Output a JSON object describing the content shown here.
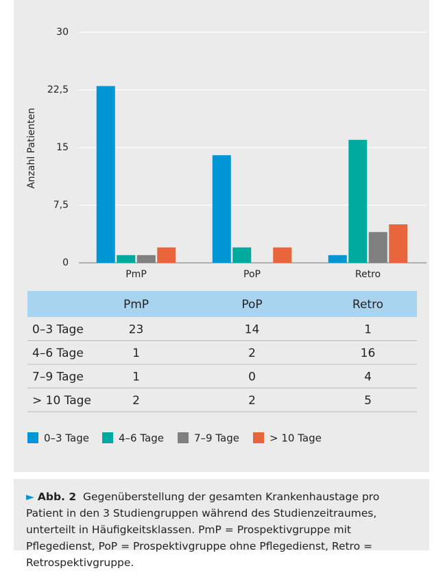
{
  "chart_data": {
    "type": "bar",
    "y_label": "Anzahl Patienten",
    "categories": [
      "PmP",
      "PoP",
      "Retro"
    ],
    "series": [
      {
        "name": "0–3 Tage",
        "color": "#0096d6",
        "values": [
          23,
          14,
          1
        ]
      },
      {
        "name": "4–6 Tage",
        "color": "#00a99d",
        "values": [
          1,
          2,
          16
        ]
      },
      {
        "name": "7–9 Tage",
        "color": "#808080",
        "values": [
          1,
          0,
          4
        ]
      },
      {
        "name": "> 10 Tage",
        "color": "#e8653c",
        "values": [
          2,
          2,
          5
        ]
      }
    ],
    "ylim": [
      0,
      30
    ],
    "yticks": [
      0,
      {
        "value": 7.5,
        "label": "7,5"
      },
      15,
      {
        "value": 22.5,
        "label": "22,5"
      },
      30
    ],
    "grid": true,
    "legend": "bottom"
  },
  "caption": {
    "label": "Abb. 2",
    "text": "Gegenüberstellung der gesamten Krankenhaustage pro Patient in den 3 Studiengruppen während des Studienzeitraumes, unterteilt in Häufigkeitsklassen. PmP = Prospektivgruppe mit Pflegedienst, PoP = Prospektivgruppe ohne Pflegedienst, Retro = Retrospektivgruppe."
  }
}
